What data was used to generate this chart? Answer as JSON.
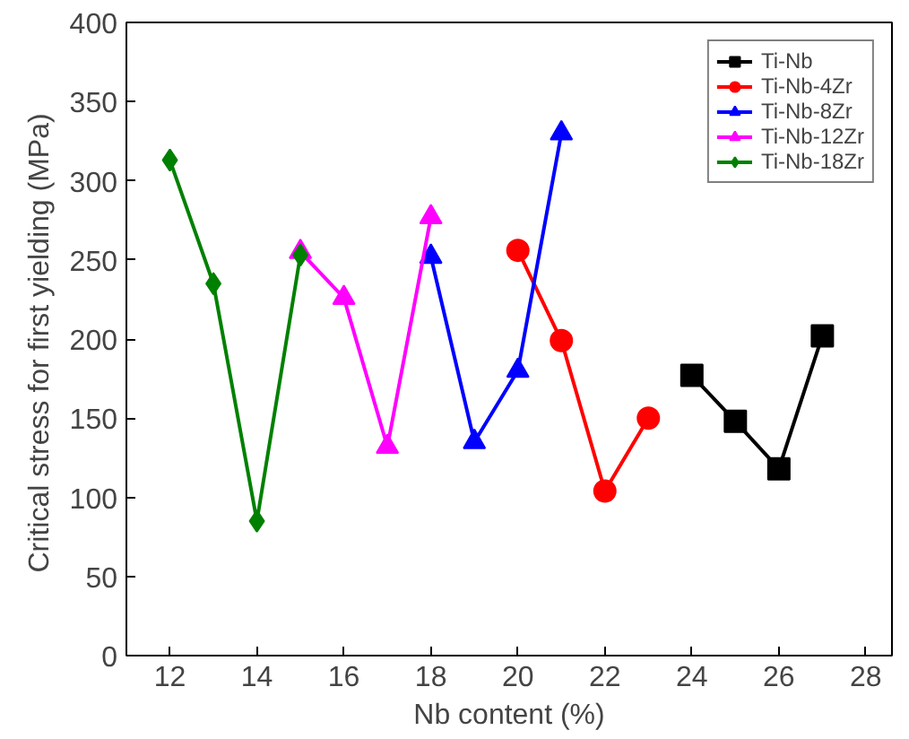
{
  "chart_data": {
    "type": "line",
    "xlabel": "Nb content (%)",
    "ylabel": "Critical stress  for first yielding (MPa)",
    "xlim": [
      11,
      28.6
    ],
    "xticks": [
      12,
      14,
      16,
      18,
      20,
      22,
      24,
      26,
      28
    ],
    "ylim": [
      0,
      400
    ],
    "yticks": [
      0,
      50,
      100,
      150,
      200,
      250,
      300,
      350,
      400
    ],
    "grid": false,
    "legend": "top right",
    "line_style": "solid",
    "series": [
      {
        "name": "Ti-Nb",
        "color": "#000000",
        "marker": "square",
        "x": [
          24,
          25,
          26,
          27
        ],
        "values": [
          177,
          148,
          118,
          202
        ]
      },
      {
        "name": "Ti-Nb-4Zr",
        "color": "#ff0000",
        "marker": "circle",
        "x": [
          20,
          21,
          22,
          23
        ],
        "values": [
          256,
          199,
          104,
          150
        ]
      },
      {
        "name": "Ti-Nb-8Zr",
        "color": "#0000ff",
        "marker": "triangle",
        "x": [
          18,
          19,
          20,
          21
        ],
        "values": [
          252,
          135,
          180,
          330
        ]
      },
      {
        "name": "Ti-Nb-12Zr",
        "color": "#ff00ff",
        "marker": "triangle",
        "x": [
          15,
          16,
          17,
          18
        ],
        "values": [
          255,
          226,
          132,
          277
        ]
      },
      {
        "name": "Ti-Nb-18Zr",
        "color": "#008000",
        "marker": "diamond",
        "x": [
          12,
          13,
          14,
          15
        ],
        "values": [
          313,
          235,
          85,
          253
        ]
      }
    ]
  }
}
